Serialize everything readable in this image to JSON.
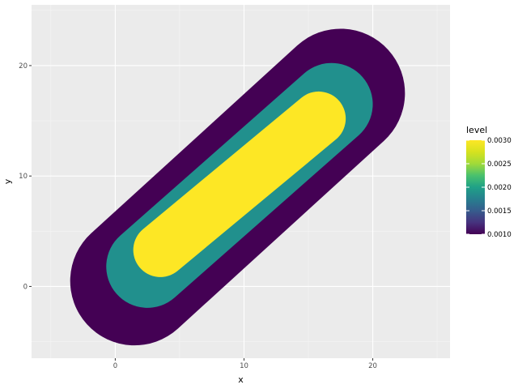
{
  "chart_data": {
    "type": "contour-filled",
    "xlabel": "x",
    "ylabel": "y",
    "xlim": [
      -6.5,
      26
    ],
    "ylim": [
      -6.5,
      25.5
    ],
    "x_ticks": [
      0,
      10,
      20
    ],
    "y_ticks": [
      0,
      10,
      20
    ],
    "grid": true,
    "legend": {
      "title": "level",
      "placement": "right",
      "labels": [
        "0.0030",
        "0.0025",
        "0.0020",
        "0.0015",
        "0.0010"
      ],
      "range": [
        0.001,
        0.003
      ]
    },
    "levels": [
      {
        "level": 0.001,
        "color": "#440154"
      },
      {
        "level": 0.002,
        "color": "#21908d"
      },
      {
        "level": 0.003,
        "color": "#fde725"
      }
    ],
    "regions": [
      {
        "level": 0.001,
        "from": [
          1.5,
          0.5
        ],
        "to": [
          17.5,
          17.5
        ],
        "radius": 5
      },
      {
        "level": 0.002,
        "from": [
          2.5,
          1.8
        ],
        "to": [
          16.8,
          16.5
        ],
        "radius": 3.2
      },
      {
        "level": 0.003,
        "from": [
          3.5,
          3.3
        ],
        "to": [
          15.8,
          15.2
        ],
        "radius": 2.1
      }
    ]
  },
  "colors": {
    "panel": "#ebebeb",
    "grid_major": "#ffffff",
    "grid_minor": "#f5f5f5"
  }
}
